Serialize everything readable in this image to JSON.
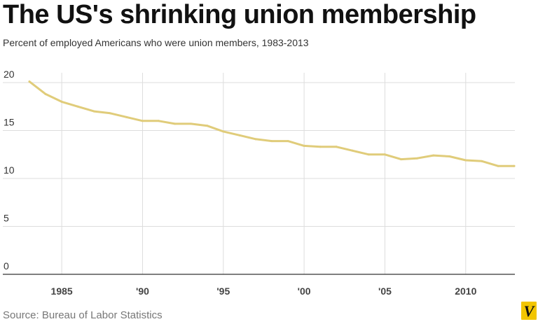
{
  "title": "The US's shrinking union membership",
  "subtitle": "Percent of employed Americans who were union members, 1983-2013",
  "source": "Source: Bureau of Labor Statistics",
  "logo_letter": "V",
  "colors": {
    "line": "#e0cc7a",
    "grid": "#dddddd",
    "axis": "#333333",
    "logo_bg": "#f2c500"
  },
  "chart_data": {
    "type": "line",
    "title": "The US's shrinking union membership",
    "subtitle": "Percent of employed Americans who were union members, 1983-2013",
    "xlabel": "",
    "ylabel": "",
    "xlim": [
      1982,
      2013
    ],
    "ylim": [
      0,
      20
    ],
    "grid": true,
    "y_ticks": [
      {
        "value": 0,
        "label": "0"
      },
      {
        "value": 5,
        "label": "5"
      },
      {
        "value": 10,
        "label": "10"
      },
      {
        "value": 15,
        "label": "15"
      },
      {
        "value": 20,
        "label": "20"
      }
    ],
    "x_ticks": [
      {
        "value": 1985,
        "label": "1985"
      },
      {
        "value": 1990,
        "label": "'90"
      },
      {
        "value": 1995,
        "label": "'95"
      },
      {
        "value": 2000,
        "label": "'00"
      },
      {
        "value": 2005,
        "label": "'05"
      },
      {
        "value": 2010,
        "label": "2010"
      }
    ],
    "series": [
      {
        "x": [
          1983,
          1984,
          1985,
          1986,
          1987,
          1988,
          1989,
          1990,
          1991,
          1992,
          1993,
          1994,
          1995,
          1996,
          1997,
          1998,
          1999,
          2000,
          2001,
          2002,
          2003,
          2004,
          2005,
          2006,
          2007,
          2008,
          2009,
          2010,
          2011,
          2012,
          2013
        ],
        "values": [
          20.1,
          18.8,
          18.0,
          17.5,
          17.0,
          16.8,
          16.4,
          16.0,
          16.0,
          15.7,
          15.7,
          15.5,
          14.9,
          14.5,
          14.1,
          13.9,
          13.9,
          13.4,
          13.3,
          13.3,
          12.9,
          12.5,
          12.5,
          12.0,
          12.1,
          12.4,
          12.3,
          11.9,
          11.8,
          11.3,
          11.3
        ]
      }
    ]
  }
}
